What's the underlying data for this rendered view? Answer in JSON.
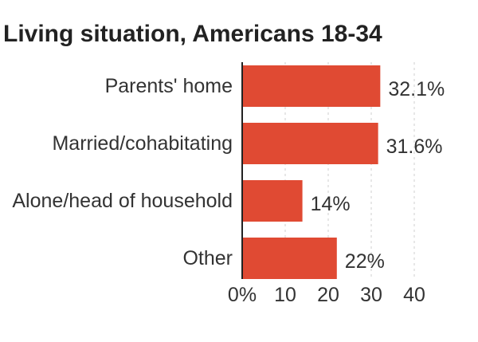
{
  "chart_data": {
    "type": "bar",
    "orientation": "horizontal",
    "title": "Living situation, Americans 18-34",
    "categories": [
      "Parents' home",
      "Married/cohabitating",
      "Alone/head of household",
      "Other"
    ],
    "values": [
      32.1,
      31.6,
      14,
      22
    ],
    "value_labels": [
      "32.1%",
      "31.6%",
      "14%",
      "22%"
    ],
    "xlim": [
      0,
      40
    ],
    "ticks": [
      0,
      10,
      20,
      30,
      40
    ],
    "tick_labels": [
      "0%",
      "10",
      "20",
      "30",
      "40"
    ],
    "xlabel": "",
    "ylabel": "",
    "grid": true,
    "bar_color": "#e04a33"
  }
}
